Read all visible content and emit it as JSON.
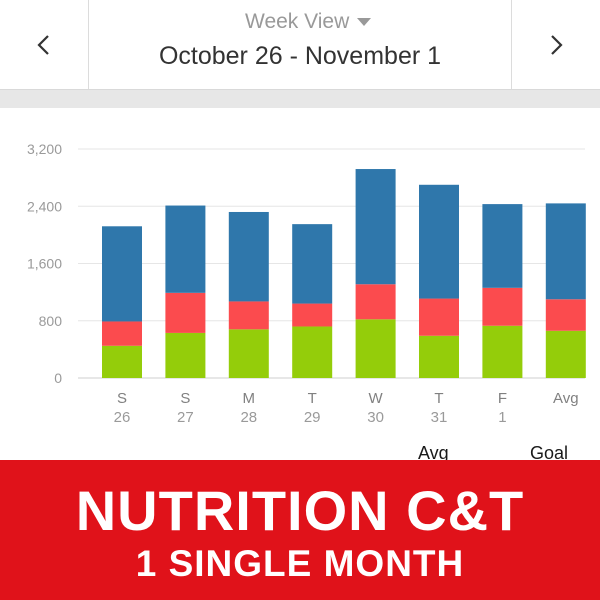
{
  "header": {
    "view_label": "Week View",
    "date_range": "October 26 - November 1",
    "prev_icon": "chevron-left-icon",
    "next_icon": "chevron-right-icon",
    "dropdown_icon": "caret-down-icon"
  },
  "chart_data": {
    "type": "bar",
    "stacked": true,
    "categories": [
      "S",
      "S",
      "M",
      "T",
      "W",
      "T",
      "F",
      "Avg"
    ],
    "subcategories": [
      "26",
      "27",
      "28",
      "29",
      "30",
      "31",
      "1",
      ""
    ],
    "yticks": [
      "0",
      "800",
      "1,600",
      "2,400",
      "3,200"
    ],
    "ylim": [
      0,
      3200
    ],
    "grid": true,
    "series": [
      {
        "values": [
          450,
          630,
          680,
          720,
          820,
          590,
          730,
          660
        ],
        "color": "#94cd0a"
      },
      {
        "values": [
          340,
          560,
          390,
          320,
          490,
          520,
          530,
          440
        ],
        "color": "#fb4b4e"
      },
      {
        "values": [
          1330,
          1220,
          1250,
          1110,
          1610,
          1590,
          1170,
          1340
        ],
        "color": "#2f77ab"
      }
    ],
    "reference_labels": [
      "Avg",
      "Goal"
    ]
  },
  "banner": {
    "title": "NUTRITION C&T",
    "subtitle": "1 SINGLE MONTH",
    "color": "#e0121a"
  }
}
